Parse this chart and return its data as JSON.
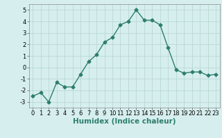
{
  "x": [
    0,
    1,
    2,
    3,
    4,
    5,
    6,
    7,
    8,
    9,
    10,
    11,
    12,
    13,
    14,
    15,
    16,
    17,
    18,
    19,
    20,
    21,
    22,
    23
  ],
  "y": [
    -2.5,
    -2.2,
    -3.0,
    -1.3,
    -1.7,
    -1.7,
    -0.6,
    0.5,
    1.1,
    2.2,
    2.6,
    3.7,
    4.0,
    5.0,
    4.1,
    4.1,
    3.7,
    1.7,
    -0.2,
    -0.5,
    -0.4,
    -0.4,
    -0.7,
    -0.6
  ],
  "line_color": "#2e7d6e",
  "marker": "D",
  "marker_size": 2.5,
  "linewidth": 1.0,
  "bg_color": "#d6efee",
  "grid_color": "#b8d8d5",
  "xlabel": "Humidex (Indice chaleur)",
  "xlim": [
    -0.5,
    23.5
  ],
  "ylim": [
    -3.5,
    5.5
  ],
  "yticks": [
    -3,
    -2,
    -1,
    0,
    1,
    2,
    3,
    4,
    5
  ],
  "xticks": [
    0,
    1,
    2,
    3,
    4,
    5,
    6,
    7,
    8,
    9,
    10,
    11,
    12,
    13,
    14,
    15,
    16,
    17,
    18,
    19,
    20,
    21,
    22,
    23
  ],
  "tick_fontsize": 6,
  "xlabel_fontsize": 7.5
}
